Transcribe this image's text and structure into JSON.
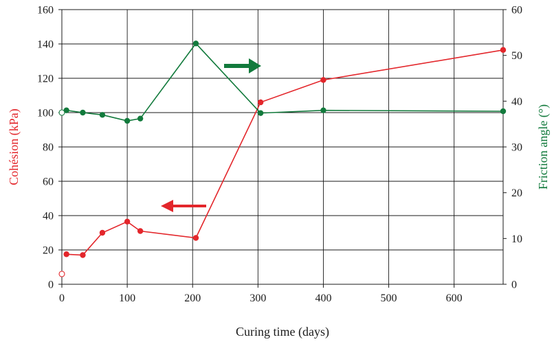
{
  "chart_data": {
    "type": "line",
    "title": "",
    "xlabel": "Curing time (days)",
    "ylabel_left": "Cohésion (kPa)",
    "ylabel_right": "Friction angle (°)",
    "xlim": [
      0,
      675
    ],
    "ylim_left": [
      0,
      160
    ],
    "ylim_right": [
      0,
      60
    ],
    "x_ticks": [
      "0",
      "100",
      "200",
      "300",
      "400",
      "500",
      "600"
    ],
    "x_tick_values": [
      0,
      100,
      200,
      300,
      400,
      500,
      600
    ],
    "y_left_ticks": [
      "0",
      "20",
      "40",
      "60",
      "80",
      "100",
      "120",
      "140",
      "160"
    ],
    "y_left_tick_values": [
      0,
      20,
      40,
      60,
      80,
      100,
      120,
      140,
      160
    ],
    "y_right_ticks": [
      "0",
      "10",
      "20",
      "30",
      "40",
      "50",
      "60"
    ],
    "y_right_tick_values": [
      0,
      10,
      20,
      30,
      40,
      50,
      60
    ],
    "grid": true,
    "series": [
      {
        "axis": "left",
        "color": "#e3262b",
        "open_point": {
          "x": 0,
          "y": 6
        },
        "points": [
          {
            "x": 7,
            "y": 17.5
          },
          {
            "x": 32,
            "y": 17
          },
          {
            "x": 62,
            "y": 30
          },
          {
            "x": 100,
            "y": 36.5
          },
          {
            "x": 120,
            "y": 31
          },
          {
            "x": 205,
            "y": 27
          },
          {
            "x": 304,
            "y": 106
          },
          {
            "x": 400,
            "y": 119
          },
          {
            "x": 675,
            "y": 136.5
          }
        ]
      },
      {
        "axis": "right",
        "color": "#127a3c",
        "open_point": {
          "x": 0,
          "y": 37.5
        },
        "points": [
          {
            "x": 7,
            "y": 38
          },
          {
            "x": 32,
            "y": 37.5
          },
          {
            "x": 62,
            "y": 37
          },
          {
            "x": 100,
            "y": 35.7
          },
          {
            "x": 120,
            "y": 36.2
          },
          {
            "x": 205,
            "y": 52.6
          },
          {
            "x": 304,
            "y": 37.4
          },
          {
            "x": 400,
            "y": 38
          },
          {
            "x": 675,
            "y": 37.8
          }
        ]
      }
    ],
    "annotations": [
      {
        "type": "arrow",
        "direction": "left",
        "color": "#e3262b",
        "series_axis": "left"
      },
      {
        "type": "arrow",
        "direction": "right",
        "color": "#127a3c",
        "series_axis": "right"
      }
    ]
  }
}
